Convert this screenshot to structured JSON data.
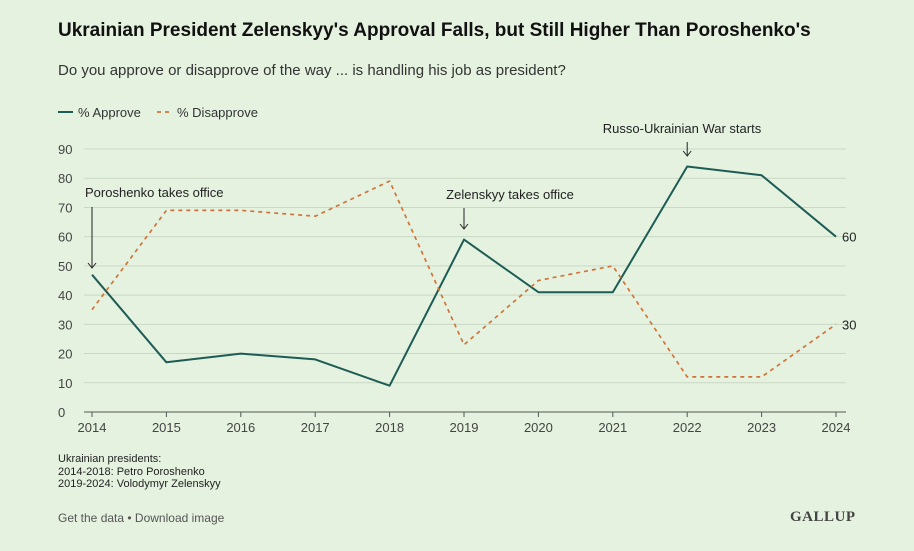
{
  "header": {
    "title": "Ukrainian President Zelenskyy's Approval Falls, but Still Higher Than Poroshenko's",
    "subtitle": "Do you approve or disapprove of the way ... is handling his job as president?"
  },
  "notes": {
    "line1": "Ukrainian presidents:",
    "line2": "2014-2018: Petro Poroshenko",
    "line3": "2019-2024: Volodymyr Zelenskyy"
  },
  "footer": {
    "get_data": "Get the data",
    "separator": " • ",
    "download": "Download image",
    "logo": "GALLUP"
  },
  "colors": {
    "approve": "#1d5c55",
    "disapprove": "#d2743a",
    "grid": "#c9d8c4",
    "axis": "#555555"
  },
  "chart_data": {
    "type": "line",
    "x": [
      "2014",
      "2015",
      "2016",
      "2017",
      "2018",
      "2019",
      "2020",
      "2021",
      "2022",
      "2023",
      "2024"
    ],
    "series": [
      {
        "name": "% Approve",
        "style": "solid",
        "values": [
          47,
          17,
          20,
          18,
          9,
          59,
          41,
          41,
          84,
          81,
          60
        ],
        "end_label": "60"
      },
      {
        "name": "% Disapprove",
        "style": "dashed",
        "values": [
          35,
          69,
          69,
          67,
          79,
          23,
          45,
          50,
          12,
          12,
          30
        ],
        "end_label": "30"
      }
    ],
    "ylim": [
      0,
      90
    ],
    "yticks": [
      0,
      10,
      20,
      30,
      40,
      50,
      60,
      70,
      80,
      90
    ],
    "legend": "top-left",
    "annotations": [
      {
        "text": "Poroshenko takes office",
        "x": "2014",
        "y": 47
      },
      {
        "text": "Zelenskyy takes office",
        "x": "2019",
        "y": 59
      },
      {
        "text": "Russo-Ukrainian War starts",
        "x": "2022",
        "y": 84
      }
    ]
  }
}
